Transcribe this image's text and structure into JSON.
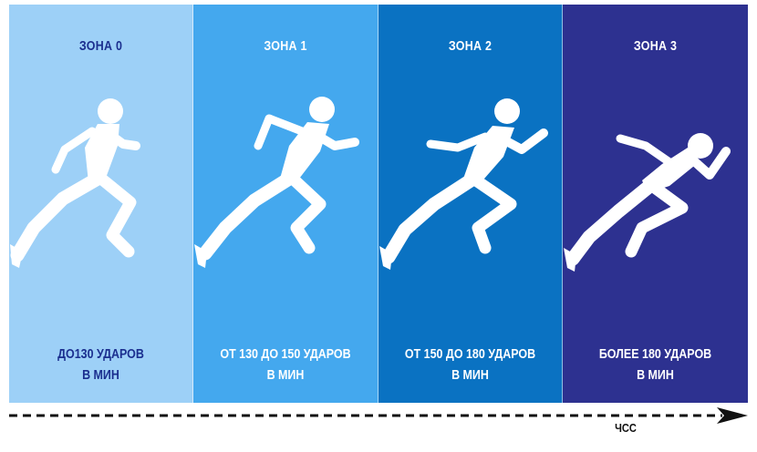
{
  "colors": {
    "zone0_bg": "#9dd0f7",
    "zone1_bg": "#44a8ee",
    "zone2_bg": "#0a72c2",
    "zone3_bg": "#2d3190",
    "dark_text": "#1b2f8f",
    "light_text": "#ffffff",
    "figure": "#ffffff",
    "arrow": "#111111"
  },
  "zones": [
    {
      "title": "ЗОНА 0",
      "line1": "ДО130 УДАРОВ",
      "line2": "В МИН",
      "icon": "running-man-icon"
    },
    {
      "title": "ЗОНА 1",
      "line1": "ОТ 130 ДО 150 УДАРОВ",
      "line2": "В МИН",
      "icon": "running-man-icon"
    },
    {
      "title": "ЗОНА 2",
      "line1": "ОТ 150 ДО 180 УДАРОВ",
      "line2": "В МИН",
      "icon": "running-man-icon"
    },
    {
      "title": "ЗОНА 3",
      "line1": "БОЛЕЕ 180 УДАРОВ",
      "line2": "В МИН",
      "icon": "running-man-icon"
    }
  ],
  "axis": {
    "label": "ЧСС",
    "icon": "dashed-arrow-right-icon"
  }
}
